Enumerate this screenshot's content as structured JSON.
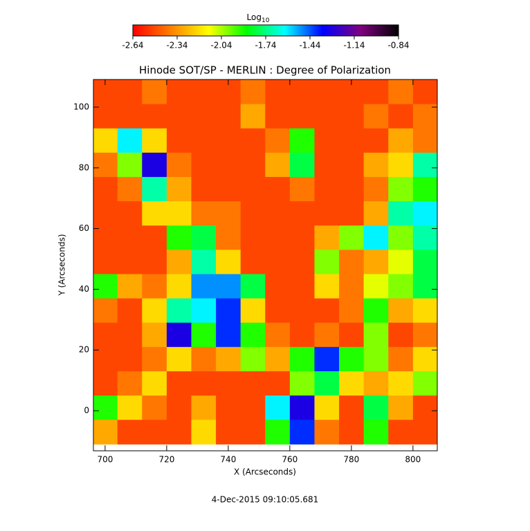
{
  "chart_data": {
    "type": "heatmap",
    "title": "Hinode SOT/SP - MERLIN : Degree of Polarization",
    "xlabel": "X (Arcseconds)",
    "ylabel": "Y (Arcseconds)",
    "footer": "4-Dec-2015 09:10:05.681",
    "colorbar_label": "Log",
    "colorbar_label_sub": "10",
    "colorbar_lim": [
      -2.64,
      -0.84
    ],
    "colorbar_ticks": [
      -2.64,
      -2.34,
      -2.04,
      -1.74,
      -1.44,
      -1.14,
      -0.84
    ],
    "colormap": [
      "#ff0000",
      "#ff8000",
      "#ffff00",
      "#00ff00",
      "#00ffff",
      "#0000ff",
      "#800080",
      "#000000"
    ],
    "xlim": [
      696.2,
      807.9
    ],
    "ylim": [
      -13.2,
      109.1
    ],
    "xticks": [
      700,
      720,
      740,
      760,
      780,
      800
    ],
    "yticks": [
      0,
      20,
      40,
      60,
      80,
      100
    ],
    "x": [
      700,
      708,
      716,
      724,
      732,
      740,
      748,
      756,
      764,
      772,
      780,
      788,
      796,
      804
    ],
    "y": [
      105,
      97,
      89,
      81,
      73,
      65,
      57,
      49,
      41,
      33,
      25,
      17,
      9,
      1,
      -7
    ],
    "z": [
      [
        -2.5,
        -2.5,
        -2.4,
        -2.5,
        -2.5,
        -2.5,
        -2.4,
        -2.5,
        -2.5,
        -2.5,
        -2.5,
        -2.5,
        -2.4,
        -2.5
      ],
      [
        -2.5,
        -2.5,
        -2.5,
        -2.5,
        -2.5,
        -2.5,
        -2.3,
        -2.5,
        -2.5,
        -2.5,
        -2.5,
        -2.4,
        -2.5,
        -2.4
      ],
      [
        -2.2,
        -1.6,
        -2.2,
        -2.5,
        -2.5,
        -2.5,
        -2.5,
        -2.4,
        -1.9,
        -2.5,
        -2.5,
        -2.5,
        -2.3,
        -2.4
      ],
      [
        -2.4,
        -2.0,
        -1.3,
        -2.4,
        -2.5,
        -2.5,
        -2.5,
        -2.3,
        -1.8,
        -2.5,
        -2.5,
        -2.3,
        -2.2,
        -1.7
      ],
      [
        -2.5,
        -2.4,
        -1.7,
        -2.3,
        -2.5,
        -2.5,
        -2.5,
        -2.5,
        -2.4,
        -2.5,
        -2.5,
        -2.4,
        -2.0,
        -1.9
      ],
      [
        -2.5,
        -2.5,
        -2.2,
        -2.2,
        -2.4,
        -2.4,
        -2.5,
        -2.5,
        -2.5,
        -2.5,
        -2.5,
        -2.3,
        -1.7,
        -1.6
      ],
      [
        -2.5,
        -2.5,
        -2.5,
        -1.9,
        -1.8,
        -2.4,
        -2.5,
        -2.5,
        -2.5,
        -2.3,
        -2.0,
        -1.6,
        -2.0,
        -1.7
      ],
      [
        -2.5,
        -2.5,
        -2.5,
        -2.3,
        -1.7,
        -2.2,
        -2.5,
        -2.5,
        -2.5,
        -2.0,
        -2.4,
        -2.3,
        -2.1,
        -1.8
      ],
      [
        -1.9,
        -2.3,
        -2.4,
        -2.2,
        -1.5,
        -1.5,
        -1.8,
        -2.5,
        -2.5,
        -2.2,
        -2.4,
        -2.1,
        -2.0,
        -1.8
      ],
      [
        -2.4,
        -2.5,
        -2.2,
        -1.7,
        -1.6,
        -1.4,
        -2.2,
        -2.5,
        -2.5,
        -2.5,
        -2.4,
        -1.9,
        -2.3,
        -2.2
      ],
      [
        -2.5,
        -2.5,
        -2.3,
        -1.3,
        -1.9,
        -1.4,
        -1.9,
        -2.4,
        -2.5,
        -2.4,
        -2.5,
        -2.0,
        -2.5,
        -2.4
      ],
      [
        -2.5,
        -2.5,
        -2.4,
        -2.2,
        -2.4,
        -2.3,
        -2.0,
        -2.3,
        -1.9,
        -1.4,
        -1.9,
        -2.0,
        -2.4,
        -2.2
      ],
      [
        -2.5,
        -2.4,
        -2.2,
        -2.5,
        -2.5,
        -2.5,
        -2.5,
        -2.5,
        -2.0,
        -1.8,
        -2.2,
        -2.3,
        -2.2,
        -2.0
      ],
      [
        -1.9,
        -2.2,
        -2.4,
        -2.5,
        -2.3,
        -2.5,
        -2.5,
        -1.6,
        -1.3,
        -2.2,
        -2.5,
        -1.8,
        -2.3,
        -2.5
      ],
      [
        -2.3,
        -2.5,
        -2.5,
        -2.5,
        -2.2,
        -2.5,
        -2.5,
        -1.9,
        -1.4,
        -2.4,
        -2.5,
        -1.9,
        -2.5,
        -2.5
      ]
    ]
  }
}
